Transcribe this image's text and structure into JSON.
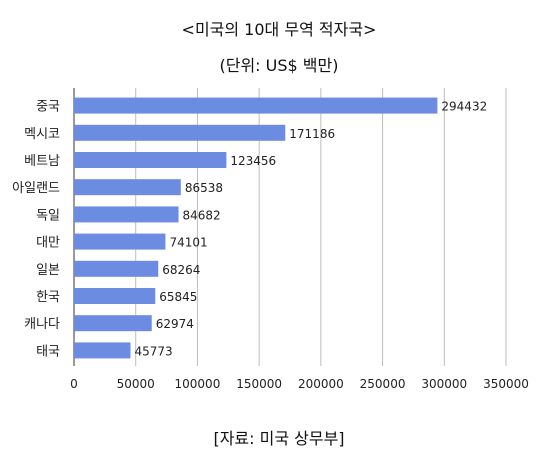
{
  "title": "<미국의 10대 무역 적자국>",
  "subtitle": "(단위: US$ 백만)",
  "source": "[자료: 미국 상무부]",
  "chart_data": {
    "type": "bar",
    "orientation": "horizontal",
    "title": "<미국의 10대 무역 적자국>",
    "subtitle": "(단위: US$ 백만)",
    "categories": [
      "중국",
      "멕시코",
      "베트남",
      "아일랜드",
      "독일",
      "대만",
      "일본",
      "한국",
      "캐나다",
      "태국"
    ],
    "values": [
      294432,
      171186,
      123456,
      86538,
      84682,
      74101,
      68264,
      65845,
      62974,
      45773
    ],
    "xlim": [
      0,
      350000
    ],
    "x_ticks": [
      0,
      50000,
      100000,
      150000,
      200000,
      250000,
      300000,
      350000
    ],
    "grid": true,
    "legend": "none",
    "bar_color": "#6b8ce0"
  }
}
